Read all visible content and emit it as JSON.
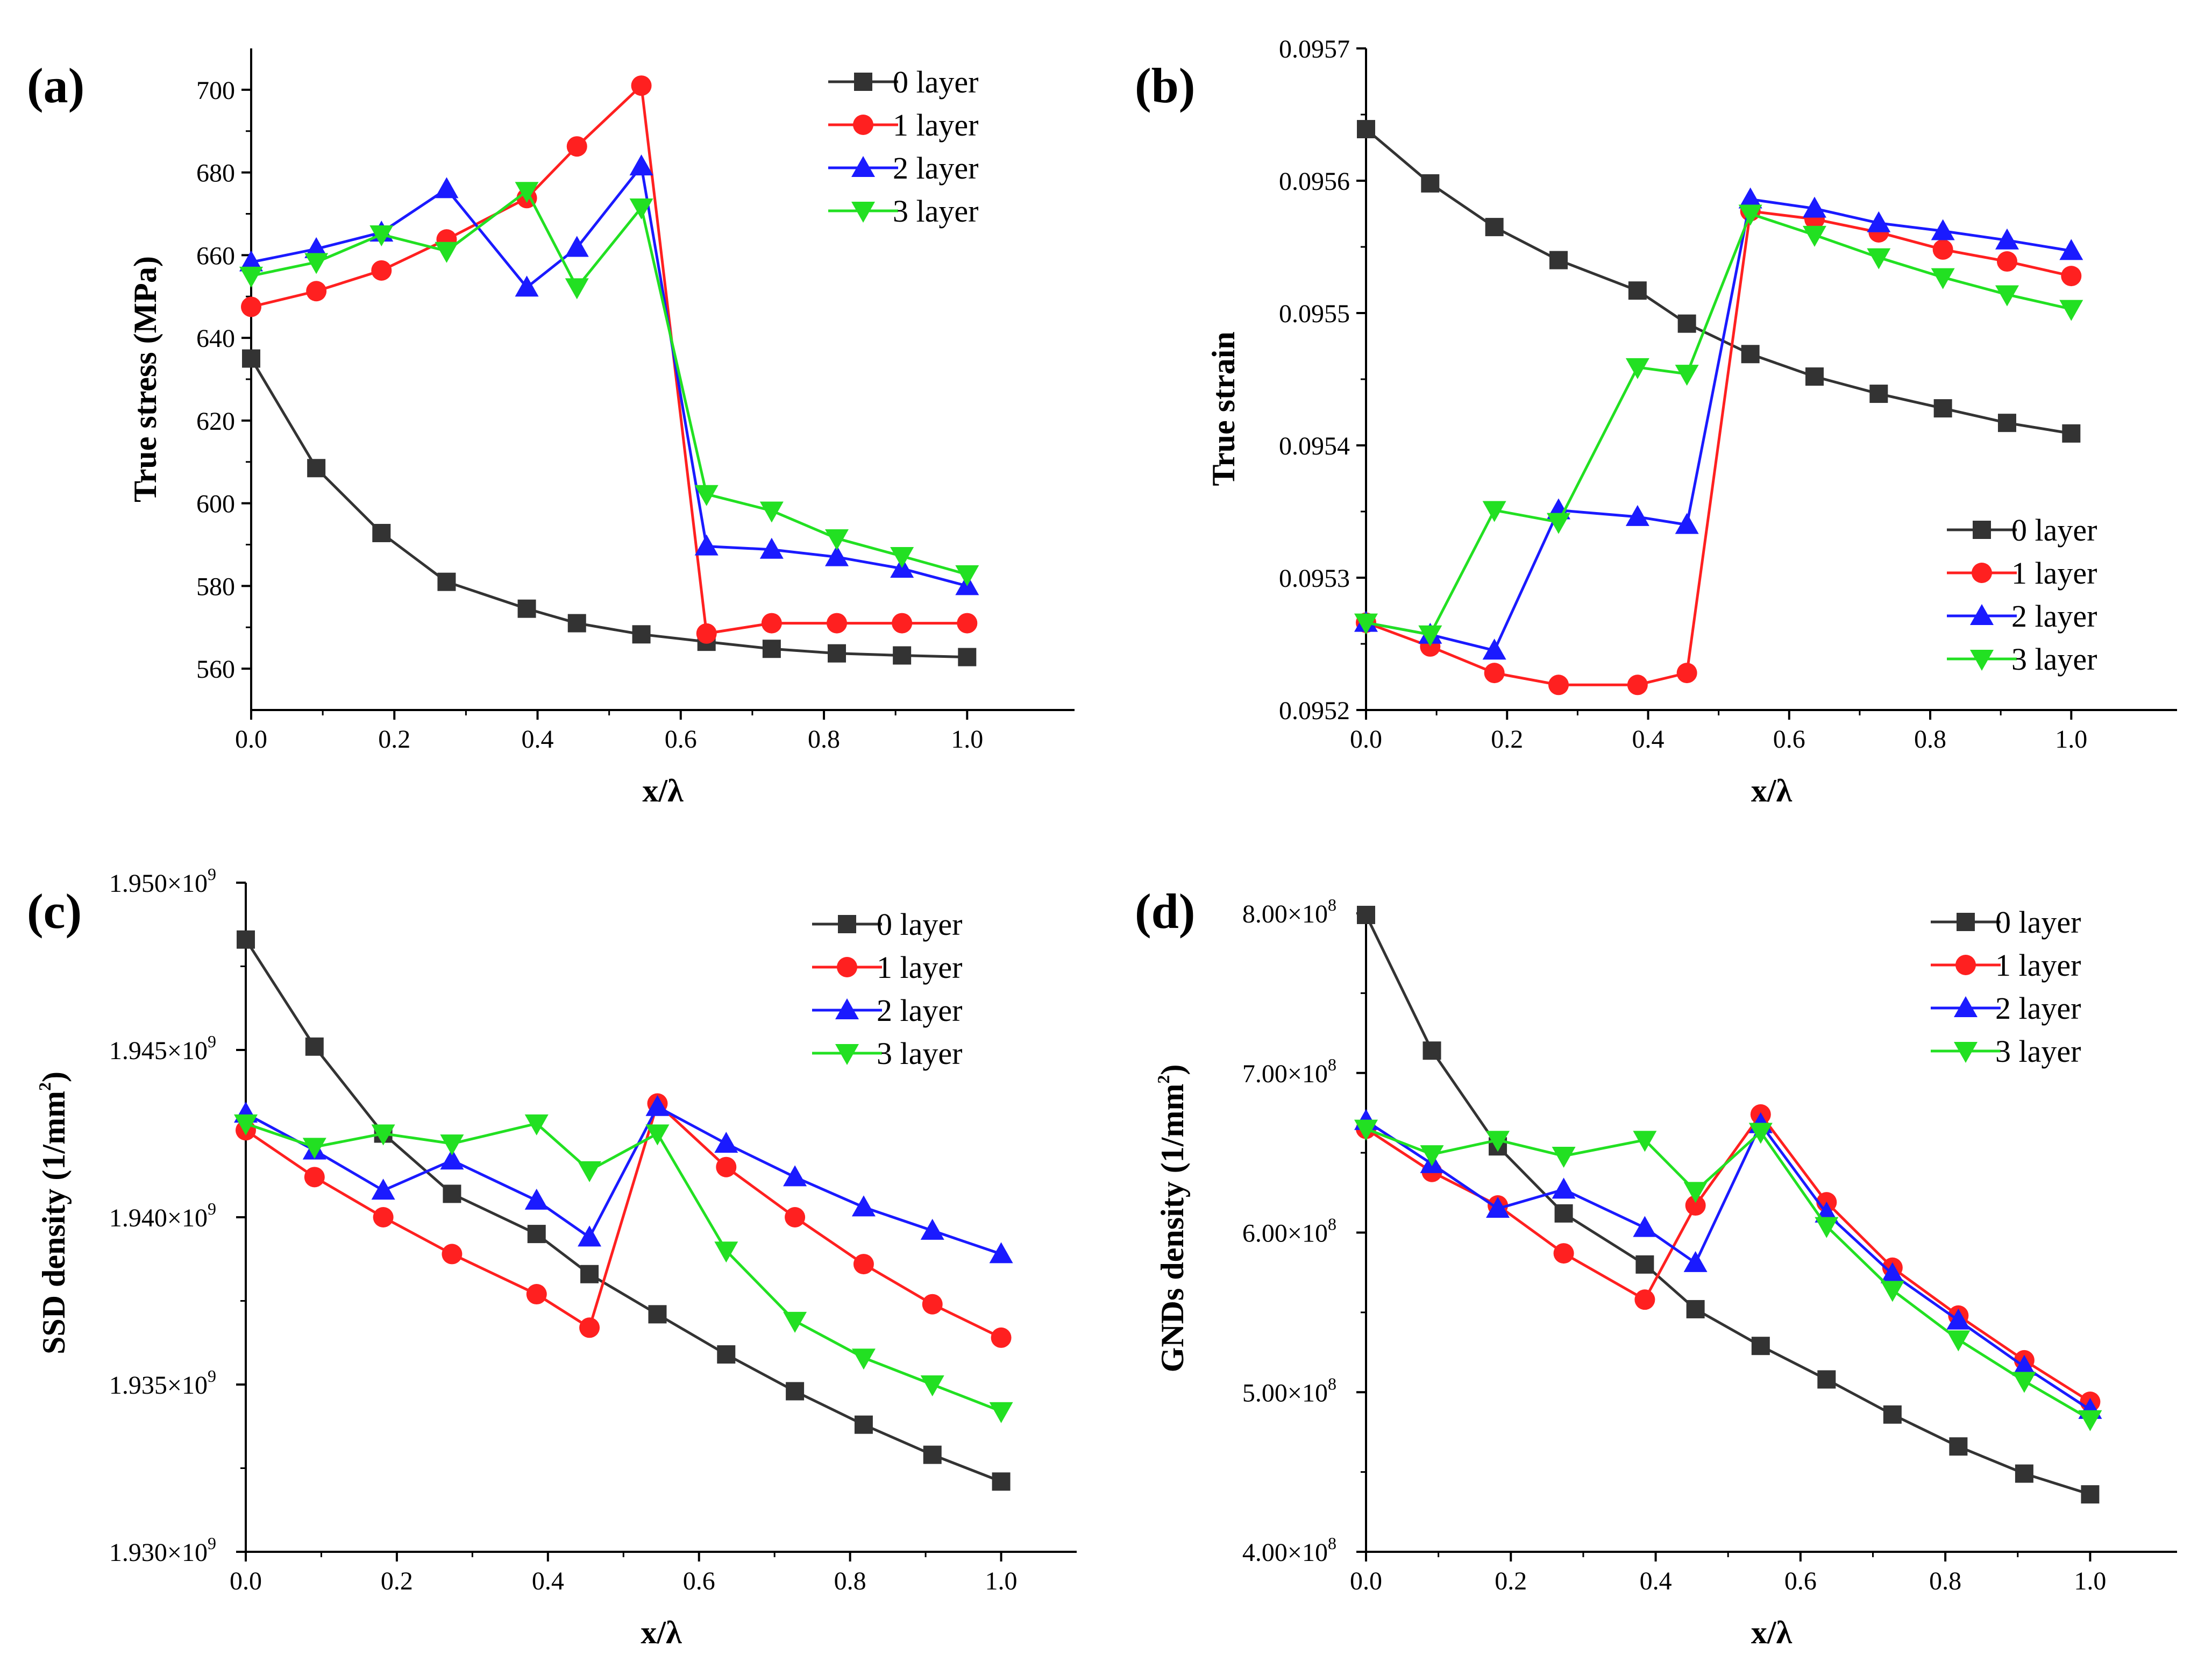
{
  "chart_data": [
    {
      "type": "line",
      "panel_label": "(a)",
      "xlabel": "x/λ",
      "ylabel": "True stress (MPa)",
      "xlim": [
        0.0,
        1.15
      ],
      "ylim": [
        550,
        710
      ],
      "xticks": [
        0.0,
        0.2,
        0.4,
        0.6,
        0.8,
        1.0
      ],
      "xtick_labels": [
        "0.0",
        "0.2",
        "0.4",
        "0.6",
        "0.8",
        "1.0"
      ],
      "yticks": [
        560,
        580,
        600,
        620,
        640,
        660,
        680,
        700
      ],
      "ytick_labels": [
        "560",
        "580",
        "600",
        "620",
        "640",
        "660",
        "680",
        "700"
      ],
      "legend_position": "top-right",
      "x": [
        0.0,
        0.091,
        0.182,
        0.273,
        0.385,
        0.455,
        0.545,
        0.636,
        0.727,
        0.818,
        0.909,
        1.0
      ],
      "series": [
        {
          "name": "0 layer",
          "color": "#333333",
          "marker": "square",
          "values": [
            635,
            608.5,
            592.8,
            581,
            574.5,
            571,
            568.3,
            566.5,
            564.8,
            563.7,
            563.2,
            562.8
          ]
        },
        {
          "name": "1 layer",
          "color": "#ff2020",
          "marker": "circle",
          "values": [
            647.5,
            651.3,
            656.3,
            663.8,
            673.8,
            686.3,
            701,
            568.5,
            571,
            571,
            571,
            571
          ]
        },
        {
          "name": "2 layer",
          "color": "#1a1aff",
          "marker": "triangle-up",
          "values": [
            658.3,
            661.5,
            665.5,
            676,
            652.2,
            661.8,
            681.5,
            589.6,
            588.8,
            587,
            584.2,
            580
          ]
        },
        {
          "name": "3 layer",
          "color": "#22e022",
          "marker": "triangle-down",
          "values": [
            655,
            658.3,
            665,
            661,
            675.5,
            652.2,
            671.5,
            602.2,
            598.2,
            591.5,
            587.2,
            582.8
          ]
        }
      ]
    },
    {
      "type": "line",
      "panel_label": "(b)",
      "xlabel": "x/λ",
      "ylabel": "True strain",
      "xlim": [
        0.0,
        1.15
      ],
      "ylim": [
        0.0952,
        0.0957
      ],
      "xticks": [
        0.0,
        0.2,
        0.4,
        0.6,
        0.8,
        1.0
      ],
      "xtick_labels": [
        "0.0",
        "0.2",
        "0.4",
        "0.6",
        "0.8",
        "1.0"
      ],
      "yticks": [
        0.0952,
        0.0953,
        0.0954,
        0.0955,
        0.0956,
        0.0957
      ],
      "ytick_labels": [
        "0.0952",
        "0.0953",
        "0.0954",
        "0.0955",
        "0.0956",
        "0.0957"
      ],
      "legend_position": "bottom-right",
      "x": [
        0.0,
        0.091,
        0.182,
        0.273,
        0.385,
        0.455,
        0.545,
        0.636,
        0.727,
        0.818,
        0.909,
        1.0
      ],
      "series": [
        {
          "name": "0 layer",
          "color": "#333333",
          "marker": "square",
          "values": [
            0.095639,
            0.095598,
            0.095565,
            0.09554,
            0.095517,
            0.095492,
            0.095469,
            0.095452,
            0.095439,
            0.095428,
            0.095417,
            0.095409
          ]
        },
        {
          "name": "1 layer",
          "color": "#ff2020",
          "marker": "circle",
          "values": [
            0.095266,
            0.095248,
            0.095228,
            0.095219,
            0.095219,
            0.095228,
            0.095577,
            0.095571,
            0.095561,
            0.095548,
            0.095539,
            0.095528
          ]
        },
        {
          "name": "2 layer",
          "color": "#1a1aff",
          "marker": "triangle-up",
          "values": [
            0.095266,
            0.095257,
            0.095245,
            0.095351,
            0.095346,
            0.09534,
            0.095586,
            0.095579,
            0.095568,
            0.095562,
            0.095555,
            0.095547
          ]
        },
        {
          "name": "3 layer",
          "color": "#22e022",
          "marker": "triangle-down",
          "values": [
            0.095266,
            0.095257,
            0.095351,
            0.095342,
            0.095459,
            0.095454,
            0.095575,
            0.095559,
            0.095542,
            0.095527,
            0.095514,
            0.095503
          ]
        }
      ]
    },
    {
      "type": "line",
      "panel_label": "(c)",
      "xlabel": "x/λ",
      "ylabel": "SSD density (1/mm",
      "ylabel_sup": "2",
      "ylabel_end": ")",
      "xlim": [
        0.0,
        1.1
      ],
      "ylim": [
        1930000000.0,
        1950000000.0
      ],
      "xticks": [
        0.0,
        0.2,
        0.4,
        0.6,
        0.8,
        1.0
      ],
      "xtick_labels": [
        "0.0",
        "0.2",
        "0.4",
        "0.6",
        "0.8",
        "1.0"
      ],
      "yticks": [
        1930000000.0,
        1935000000.0,
        1940000000.0,
        1945000000.0,
        1950000000.0
      ],
      "ytick_labels": [
        "1.930×10",
        "1.935×10",
        "1.940×10",
        "1.945×10",
        "1.950×10"
      ],
      "ytick_exponent": "9",
      "legend_position": "top-right",
      "x": [
        0.0,
        0.091,
        0.182,
        0.273,
        0.385,
        0.455,
        0.545,
        0.636,
        0.727,
        0.818,
        0.909,
        1.0
      ],
      "series": [
        {
          "name": "0 layer",
          "color": "#333333",
          "marker": "square",
          "values": [
            1948300000.0,
            1945100000.0,
            1942500000.0,
            1940700000.0,
            1939500000.0,
            1938300000.0,
            1937100000.0,
            1935900000.0,
            1934800000.0,
            1933800000.0,
            1932900000.0,
            1932100000.0
          ]
        },
        {
          "name": "1 layer",
          "color": "#ff2020",
          "marker": "circle",
          "values": [
            1942600000.0,
            1941200000.0,
            1940000000.0,
            1938900000.0,
            1937700000.0,
            1936700000.0,
            1943400000.0,
            1941500000.0,
            1940000000.0,
            1938600000.0,
            1937400000.0,
            1936400000.0
          ]
        },
        {
          "name": "2 layer",
          "color": "#1a1aff",
          "marker": "triangle-up",
          "values": [
            1943100000.0,
            1942000000.0,
            1940800000.0,
            1941700000.0,
            1940500000.0,
            1939400000.0,
            1943300000.0,
            1942200000.0,
            1941200000.0,
            1940300000.0,
            1939600000.0,
            1938900000.0
          ]
        },
        {
          "name": "3 layer",
          "color": "#22e022",
          "marker": "triangle-down",
          "values": [
            1942800000.0,
            1942100000.0,
            1942500000.0,
            1942200000.0,
            1942800000.0,
            1941400000.0,
            1942500000.0,
            1939000000.0,
            1936900000.0,
            1935800000.0,
            1935000000.0,
            1934200000.0
          ]
        }
      ]
    },
    {
      "type": "line",
      "panel_label": "(d)",
      "xlabel": "x/λ",
      "ylabel": "GNDs density (1/mm",
      "ylabel_sup": "2",
      "ylabel_end": ")",
      "xlim": [
        0.0,
        1.12
      ],
      "ylim": [
        400000000.0,
        800000000.0
      ],
      "xticks": [
        0.0,
        0.2,
        0.4,
        0.6,
        0.8,
        1.0
      ],
      "xtick_labels": [
        "0.0",
        "0.2",
        "0.4",
        "0.6",
        "0.8",
        "1.0"
      ],
      "yticks": [
        400000000.0,
        500000000.0,
        600000000.0,
        700000000.0,
        800000000.0
      ],
      "ytick_labels": [
        "4.00×10",
        "5.00×10",
        "6.00×10",
        "7.00×10",
        "8.00×10"
      ],
      "ytick_exponent": "8",
      "legend_position": "top-right",
      "x": [
        0.0,
        0.091,
        0.182,
        0.273,
        0.385,
        0.455,
        0.545,
        0.636,
        0.727,
        0.818,
        0.909,
        1.0
      ],
      "series": [
        {
          "name": "0 layer",
          "color": "#333333",
          "marker": "square",
          "values": [
            799000000.0,
            714000000.0,
            654000000.0,
            612000000.0,
            580000000.0,
            552000000.0,
            529000000.0,
            508000000.0,
            486000000.0,
            466000000.0,
            449000000.0,
            436000000.0
          ]
        },
        {
          "name": "1 layer",
          "color": "#ff2020",
          "marker": "circle",
          "values": [
            665000000.0,
            638000000.0,
            617000000.0,
            587000000.0,
            558000000.0,
            617000000.0,
            674000000.0,
            619000000.0,
            578000000.0,
            548000000.0,
            520000000.0,
            494000000.0
          ]
        },
        {
          "name": "2 layer",
          "color": "#1a1aff",
          "marker": "triangle-up",
          "values": [
            670000000.0,
            643000000.0,
            615000000.0,
            627000000.0,
            603000000.0,
            581000000.0,
            668000000.0,
            612000000.0,
            574000000.0,
            545000000.0,
            516000000.0,
            489000000.0
          ]
        },
        {
          "name": "3 layer",
          "color": "#22e022",
          "marker": "triangle-down",
          "values": [
            665000000.0,
            649000000.0,
            658000000.0,
            648000000.0,
            658000000.0,
            626000000.0,
            663000000.0,
            604000000.0,
            564000000.0,
            533000000.0,
            507000000.0,
            483000000.0
          ]
        }
      ]
    }
  ]
}
